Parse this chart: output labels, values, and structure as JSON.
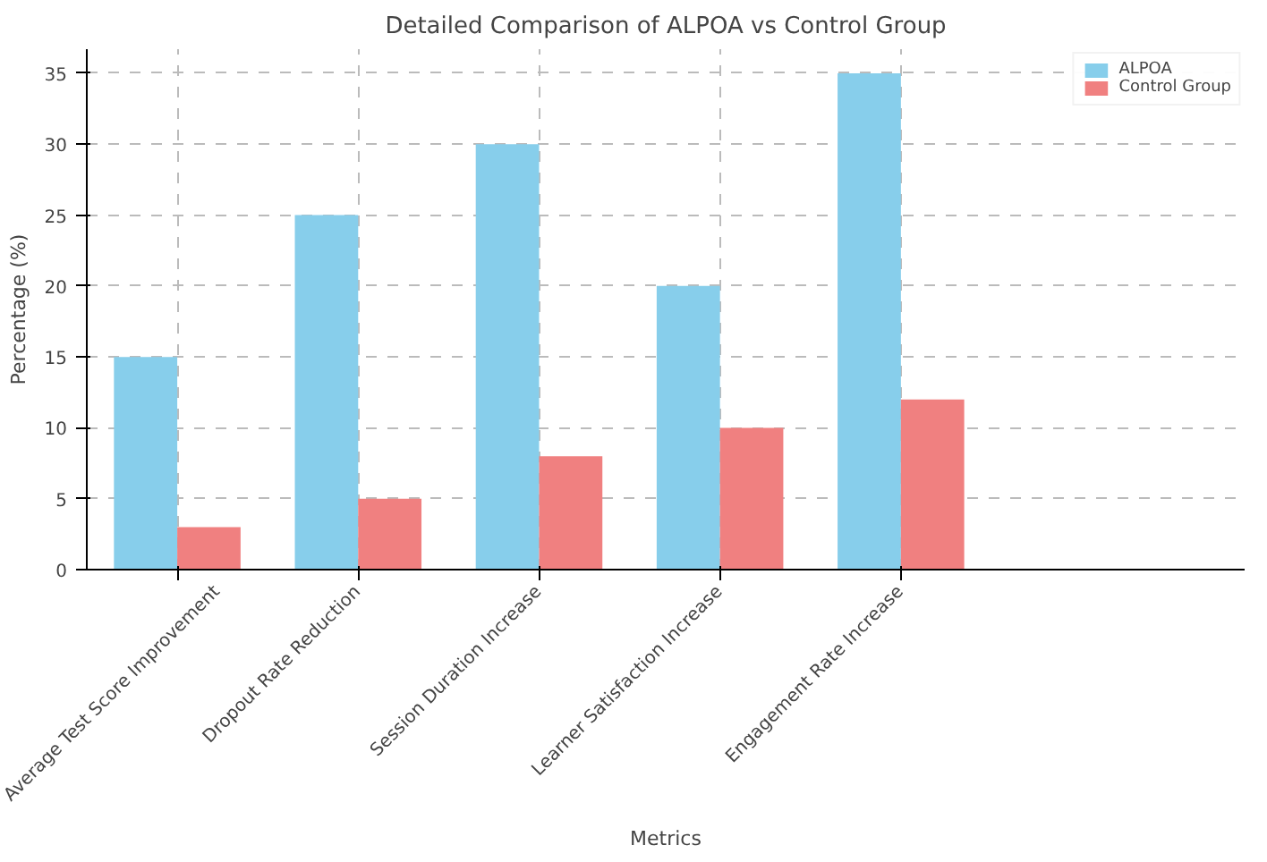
{
  "chart_data": {
    "type": "bar",
    "title": "Detailed Comparison of ALPOA vs Control Group",
    "xlabel": "Metrics",
    "ylabel": "Percentage (%)",
    "categories": [
      "Average Test Score Improvement",
      "Dropout Rate Reduction",
      "Session Duration Increase",
      "Learner Satisfaction Increase",
      "Engagement Rate Increase"
    ],
    "series": [
      {
        "name": "ALPOA",
        "color": "#87ceeb",
        "values": [
          15,
          25,
          30,
          20,
          35
        ]
      },
      {
        "name": "Control Group",
        "color": "#f08080",
        "values": [
          3,
          5,
          8,
          10,
          12
        ]
      }
    ],
    "ylim": [
      0,
      36.7
    ],
    "yticks": [
      0,
      5,
      10,
      15,
      20,
      25,
      30,
      35
    ],
    "grid": true,
    "legend": "top right"
  }
}
